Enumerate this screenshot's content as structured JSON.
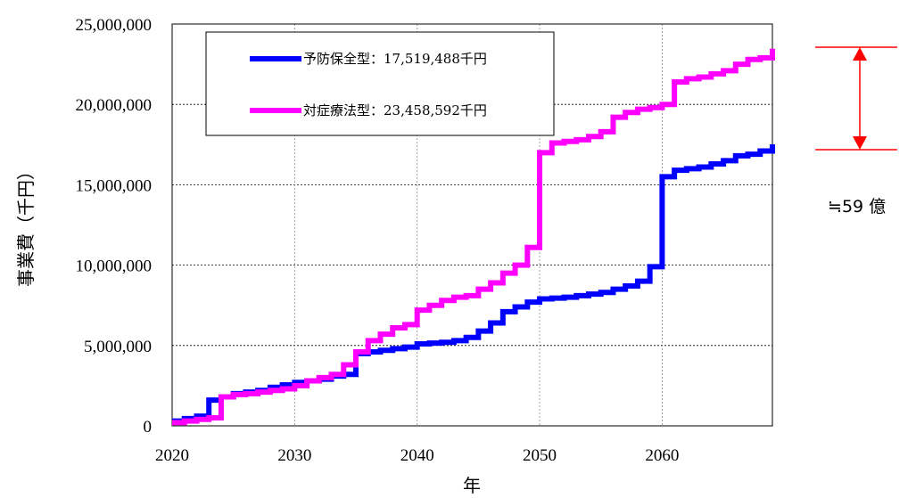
{
  "chart_data": {
    "type": "line",
    "title": "",
    "xlabel": "年",
    "ylabel": "事業費（千円）",
    "xlim": [
      2020,
      2069
    ],
    "ylim": [
      0,
      25000000
    ],
    "grid": true,
    "legend_position": "top-left",
    "x_ticks": [
      "2020",
      "2030",
      "2040",
      "2050",
      "2060"
    ],
    "y_ticks": [
      "0",
      "5,000,000",
      "10,000,000",
      "15,000,000",
      "20,000,000",
      "25,000,000"
    ],
    "series": [
      {
        "name": "予防保全型：17,519,488千円",
        "color": "#0000ff",
        "x": [
          2020,
          2021,
          2022,
          2023,
          2024,
          2025,
          2026,
          2027,
          2028,
          2029,
          2030,
          2031,
          2032,
          2033,
          2034,
          2035,
          2036,
          2037,
          2038,
          2039,
          2040,
          2041,
          2042,
          2043,
          2044,
          2045,
          2046,
          2047,
          2048,
          2049,
          2050,
          2051,
          2052,
          2053,
          2054,
          2055,
          2056,
          2057,
          2058,
          2059,
          2060,
          2061,
          2062,
          2063,
          2064,
          2065,
          2066,
          2067,
          2068,
          2069
        ],
        "values": [
          300000,
          450000,
          600000,
          1600000,
          1800000,
          2000000,
          2100000,
          2200000,
          2400000,
          2550000,
          2700000,
          2800000,
          2900000,
          3100000,
          3200000,
          4500000,
          4600000,
          4700000,
          4800000,
          4900000,
          5100000,
          5150000,
          5200000,
          5300000,
          5500000,
          5900000,
          6400000,
          7100000,
          7400000,
          7700000,
          7900000,
          7950000,
          8000000,
          8100000,
          8200000,
          8300000,
          8500000,
          8700000,
          9000000,
          9900000,
          15500000,
          15900000,
          16000000,
          16100000,
          16300000,
          16500000,
          16800000,
          16900000,
          17100000,
          17519488
        ]
      },
      {
        "name": "対症療法型：23,458,592千円",
        "color": "#ff00ff",
        "x": [
          2020,
          2021,
          2022,
          2023,
          2024,
          2025,
          2026,
          2027,
          2028,
          2029,
          2030,
          2031,
          2032,
          2033,
          2034,
          2035,
          2036,
          2037,
          2038,
          2039,
          2040,
          2041,
          2042,
          2043,
          2044,
          2045,
          2046,
          2047,
          2048,
          2049,
          2050,
          2051,
          2052,
          2053,
          2054,
          2055,
          2056,
          2057,
          2058,
          2059,
          2060,
          2061,
          2062,
          2063,
          2064,
          2065,
          2066,
          2067,
          2068,
          2069
        ],
        "values": [
          200000,
          300000,
          400000,
          500000,
          1800000,
          1950000,
          2000000,
          2100000,
          2200000,
          2300000,
          2500000,
          2800000,
          3000000,
          3200000,
          3800000,
          4600000,
          5300000,
          5700000,
          6100000,
          6300000,
          7200000,
          7500000,
          7800000,
          8000000,
          8100000,
          8500000,
          8900000,
          9500000,
          10000000,
          11100000,
          17000000,
          17600000,
          17700000,
          17800000,
          18000000,
          18300000,
          19200000,
          19500000,
          19700000,
          19800000,
          20000000,
          21400000,
          21600000,
          21700000,
          21900000,
          22100000,
          22500000,
          22800000,
          22900000,
          23458592
        ]
      }
    ],
    "annotation": {
      "label": "≒59 億",
      "color": "#ff0000"
    }
  }
}
